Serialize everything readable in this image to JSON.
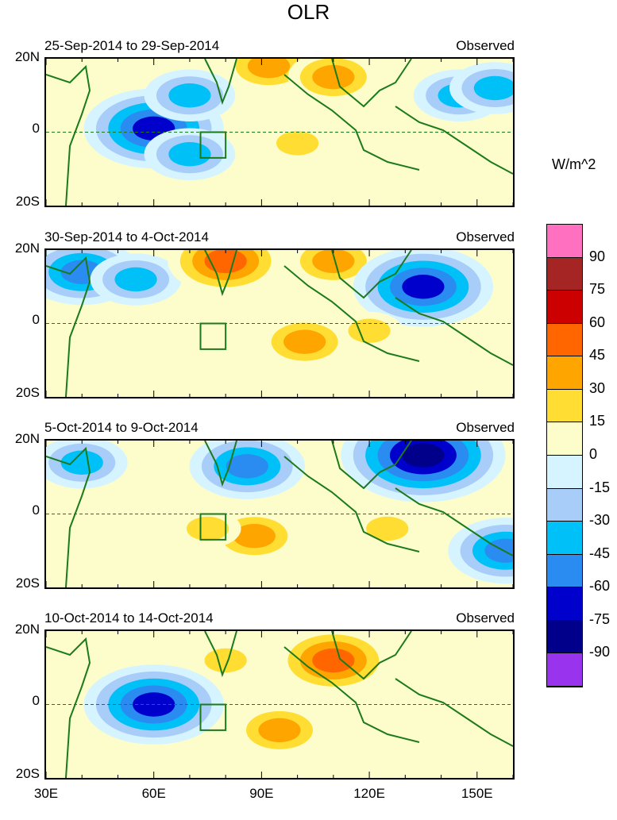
{
  "title": "OLR",
  "units": "W/m^2",
  "latitude_labels": [
    "20N",
    "0",
    "20S"
  ],
  "longitude_labels": [
    "30E",
    "60E",
    "90E",
    "120E",
    "150E"
  ],
  "panels": [
    {
      "period": "25-Sep-2014 to 29-Sep-2014",
      "label": "Observed"
    },
    {
      "period": "30-Sep-2014 to 4-Oct-2014",
      "label": "Observed"
    },
    {
      "period": "5-Oct-2014 to 9-Oct-2014",
      "label": "Observed"
    },
    {
      "period": "10-Oct-2014 to 14-Oct-2014",
      "label": "Observed"
    }
  ],
  "colorbar": {
    "labels": [
      "90",
      "75",
      "60",
      "45",
      "30",
      "15",
      "0",
      "-15",
      "-30",
      "-45",
      "-60",
      "-75",
      "-90"
    ],
    "colors": [
      "#ff70c0",
      "#a52424",
      "#cc0000",
      "#ff6600",
      "#ffa500",
      "#ffdd33",
      "#fdfdcc",
      "#d6f4ff",
      "#a8cdf8",
      "#00c0f8",
      "#2a8cf0",
      "#0000cc",
      "#00008b",
      "#9933ee"
    ]
  },
  "chart_data": {
    "type": "heatmap",
    "title": "OLR",
    "variable": "OLR anomaly",
    "units": "W/m^2",
    "xlim": [
      30,
      160
    ],
    "ylim": [
      -20,
      20
    ],
    "contour_levels": [
      -90,
      -75,
      -60,
      -45,
      -30,
      -15,
      0,
      15,
      30,
      45,
      60,
      75,
      90
    ],
    "panels": [
      {
        "period": "25-Sep-2014 to 29-Sep-2014",
        "label": "Observed",
        "anomalies": [
          {
            "lon": 60,
            "lat": 1,
            "value": -75
          },
          {
            "lon": 70,
            "lat": 10,
            "value": -45
          },
          {
            "lon": 70,
            "lat": -6,
            "value": -45
          },
          {
            "lon": 92,
            "lat": 18,
            "value": 45
          },
          {
            "lon": 110,
            "lat": 15,
            "value": 45
          },
          {
            "lon": 100,
            "lat": -3,
            "value": 30
          },
          {
            "lon": 145,
            "lat": 10,
            "value": -45
          },
          {
            "lon": 155,
            "lat": 12,
            "value": -45
          }
        ]
      },
      {
        "period": "30-Sep-2014 to 4-Oct-2014",
        "label": "Observed",
        "anomalies": [
          {
            "lon": 40,
            "lat": 14,
            "value": -60
          },
          {
            "lon": 55,
            "lat": 12,
            "value": -45
          },
          {
            "lon": 80,
            "lat": 17,
            "value": 60
          },
          {
            "lon": 110,
            "lat": 17,
            "value": 45
          },
          {
            "lon": 102,
            "lat": -5,
            "value": 45
          },
          {
            "lon": 135,
            "lat": 10,
            "value": -75
          },
          {
            "lon": 120,
            "lat": -2,
            "value": 30
          }
        ]
      },
      {
        "period": "5-Oct-2014 to 9-Oct-2014",
        "label": "Observed",
        "anomalies": [
          {
            "lon": 40,
            "lat": 14,
            "value": -45
          },
          {
            "lon": 86,
            "lat": 13,
            "value": -60
          },
          {
            "lon": 135,
            "lat": 16,
            "value": -90
          },
          {
            "lon": 88,
            "lat": -6,
            "value": 45
          },
          {
            "lon": 75,
            "lat": -4,
            "value": 30
          },
          {
            "lon": 125,
            "lat": -4,
            "value": 30
          },
          {
            "lon": 158,
            "lat": -10,
            "value": -60
          }
        ]
      },
      {
        "period": "10-Oct-2014 to 14-Oct-2014",
        "label": "Observed",
        "anomalies": [
          {
            "lon": 60,
            "lat": 0,
            "value": -75
          },
          {
            "lon": 95,
            "lat": -7,
            "value": 45
          },
          {
            "lon": 110,
            "lat": 12,
            "value": 60
          },
          {
            "lon": 80,
            "lat": 12,
            "value": 30
          },
          {
            "lon": 135,
            "lat": 12,
            "value": 15
          }
        ]
      }
    ]
  }
}
